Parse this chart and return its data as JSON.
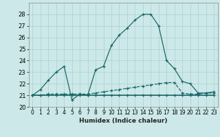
{
  "xlabel": "Humidex (Indice chaleur)",
  "bg_color": "#cce8e8",
  "grid_color": "#b0d4d4",
  "line_color": "#1a6666",
  "xlim": [
    -0.5,
    23.5
  ],
  "ylim": [
    20,
    29
  ],
  "xticks": [
    0,
    1,
    2,
    3,
    4,
    5,
    6,
    7,
    8,
    9,
    10,
    11,
    12,
    13,
    14,
    15,
    16,
    17,
    18,
    19,
    20,
    21,
    22,
    23
  ],
  "yticks": [
    20,
    21,
    22,
    23,
    24,
    25,
    26,
    27,
    28
  ],
  "line1_x": [
    0,
    1,
    2,
    3,
    4,
    5,
    6,
    7,
    8,
    9,
    10,
    11,
    12,
    13,
    14,
    15,
    16,
    17,
    18,
    19,
    20,
    21,
    22,
    23
  ],
  "line1_y": [
    21.0,
    21.5,
    22.3,
    23.0,
    23.5,
    20.6,
    21.1,
    21.0,
    23.2,
    23.5,
    25.3,
    26.2,
    26.8,
    27.5,
    28.0,
    28.0,
    27.0,
    24.0,
    23.3,
    22.2,
    22.0,
    21.2,
    21.2,
    21.3
  ],
  "line2_x": [
    0,
    1,
    2,
    3,
    4,
    5,
    6,
    7,
    8,
    9,
    10,
    11,
    12,
    13,
    14,
    15,
    16,
    17,
    18,
    19,
    20,
    21,
    22,
    23
  ],
  "line2_y": [
    21.0,
    21.0,
    21.1,
    21.1,
    21.1,
    21.1,
    21.1,
    21.1,
    21.2,
    21.3,
    21.4,
    21.5,
    21.6,
    21.7,
    21.8,
    21.9,
    22.0,
    22.1,
    22.1,
    21.2,
    21.1,
    21.1,
    21.2,
    21.2
  ],
  "line3_x": [
    0,
    1,
    2,
    3,
    4,
    5,
    6,
    7,
    8,
    9,
    10,
    11,
    12,
    13,
    14,
    15,
    16,
    17,
    18,
    19,
    20,
    21,
    22,
    23
  ],
  "line3_y": [
    21.0,
    21.0,
    21.0,
    21.0,
    21.0,
    21.0,
    21.0,
    21.0,
    21.0,
    21.0,
    21.0,
    21.0,
    21.0,
    21.0,
    21.0,
    21.0,
    21.0,
    21.0,
    21.0,
    21.0,
    21.0,
    21.0,
    21.0,
    21.0
  ]
}
